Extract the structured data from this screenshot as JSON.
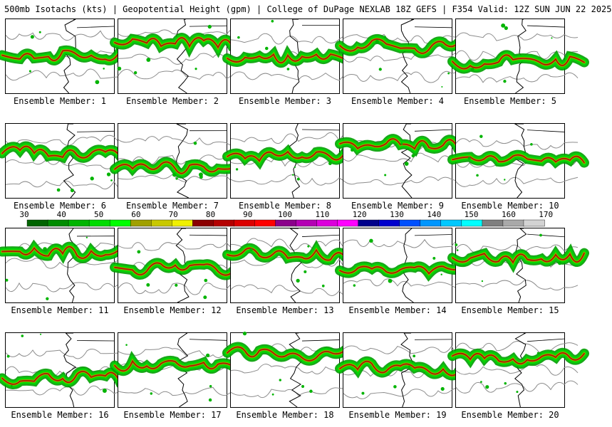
{
  "header": {
    "title": "500mb Isotachs (kts) | Geopotential Height (gpm) | College of DuPage NEXLAB   18Z GEFS | F354 Valid: 12Z SUN JUN 22 2025"
  },
  "colorbar": {
    "labels": [
      "30",
      "40",
      "50",
      "60",
      "70",
      "80",
      "90",
      "100",
      "110",
      "120",
      "130",
      "140",
      "150",
      "160",
      "170"
    ],
    "colors": [
      "#006400",
      "#008c00",
      "#00b400",
      "#00dc00",
      "#00ff00",
      "#a0a000",
      "#c8c800",
      "#f0f000",
      "#8b0000",
      "#b40000",
      "#dc0000",
      "#ff0000",
      "#8b008b",
      "#b400b4",
      "#dc00dc",
      "#ff00ff",
      "#00008b",
      "#0000cd",
      "#0050ff",
      "#0096ff",
      "#00c8ff",
      "#00ffff",
      "#7f7f7f",
      "#a9a9a9",
      "#d3d3d3"
    ]
  },
  "panels": [
    {
      "caption": "Ensemble Member: 1"
    },
    {
      "caption": "Ensemble Member: 2"
    },
    {
      "caption": "Ensemble Member: 3"
    },
    {
      "caption": "Ensemble Member: 4"
    },
    {
      "caption": "Ensemble Member: 5"
    },
    {
      "caption": "Ensemble Member: 6"
    },
    {
      "caption": "Ensemble Member: 7"
    },
    {
      "caption": "Ensemble Member: 8"
    },
    {
      "caption": "Ensemble Member: 9"
    },
    {
      "caption": "Ensemble Member: 10"
    },
    {
      "caption": "Ensemble Member: 11"
    },
    {
      "caption": "Ensemble Member: 12"
    },
    {
      "caption": "Ensemble Member: 13"
    },
    {
      "caption": "Ensemble Member: 14"
    },
    {
      "caption": "Ensemble Member: 15"
    },
    {
      "caption": "Ensemble Member: 16"
    },
    {
      "caption": "Ensemble Member: 17"
    },
    {
      "caption": "Ensemble Member: 18"
    },
    {
      "caption": "Ensemble Member: 19"
    },
    {
      "caption": "Ensemble Member: 20"
    }
  ]
}
